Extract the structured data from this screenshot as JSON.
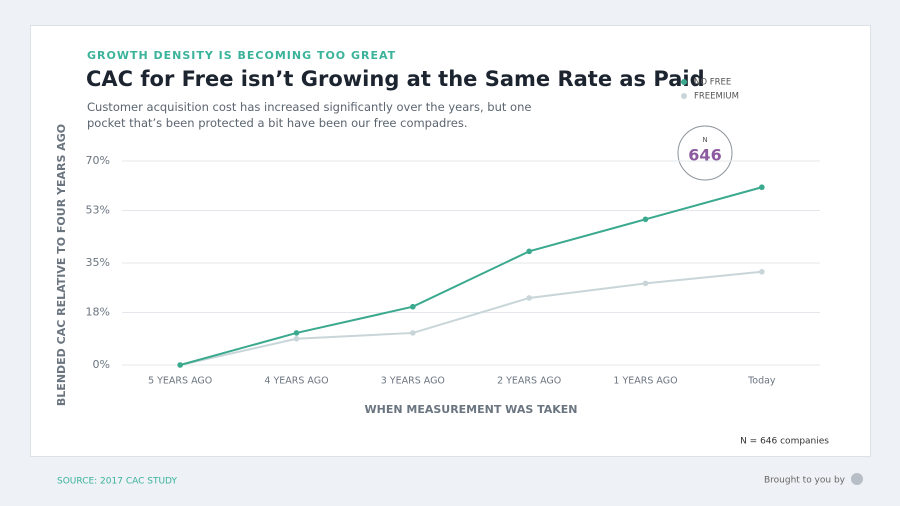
{
  "chart_data": {
    "type": "line",
    "eyebrow": "GROWTH DENSITY IS BECOMING TOO GREAT",
    "title": "CAC for Free isn’t Growing at the Same Rate as Paid",
    "subtitle": "Customer acquisition cost has increased significantly over the years, but one pocket that’s been protected a bit have been our free compadres.",
    "categories": [
      "5 YEARS AGO",
      "4 YEARS AGO",
      "3 YEARS AGO",
      "2 YEARS AGO",
      "1 YEARS AGO",
      "Today"
    ],
    "series": [
      {
        "name": "NO FREE",
        "color": "#3aa98e",
        "values": [
          0,
          11,
          20,
          39,
          50,
          61
        ]
      },
      {
        "name": "FREEMIUM",
        "color": "#c8d5d9",
        "values": [
          0,
          9,
          11,
          23,
          28,
          32
        ]
      }
    ],
    "ylim": [
      0,
      70
    ],
    "yticks": [
      {
        "value": 0,
        "label": "0%"
      },
      {
        "value": 18,
        "label": "18%"
      },
      {
        "value": 35,
        "label": "35%"
      },
      {
        "value": 53,
        "label": "53%"
      },
      {
        "value": 70,
        "label": "70%"
      }
    ],
    "grid": true,
    "legend": "top-right",
    "x_label": "WHEN MEASUREMENT WAS TAKEN",
    "y_label": "BLENDED CAC RELATIVE TO FOUR YEARS AGO",
    "annotation": {
      "label": "N",
      "value": "646"
    },
    "note": "N = 646 companies",
    "source": "SOURCE: 2017 CAC STUDY",
    "credit": "Brought to you by"
  }
}
